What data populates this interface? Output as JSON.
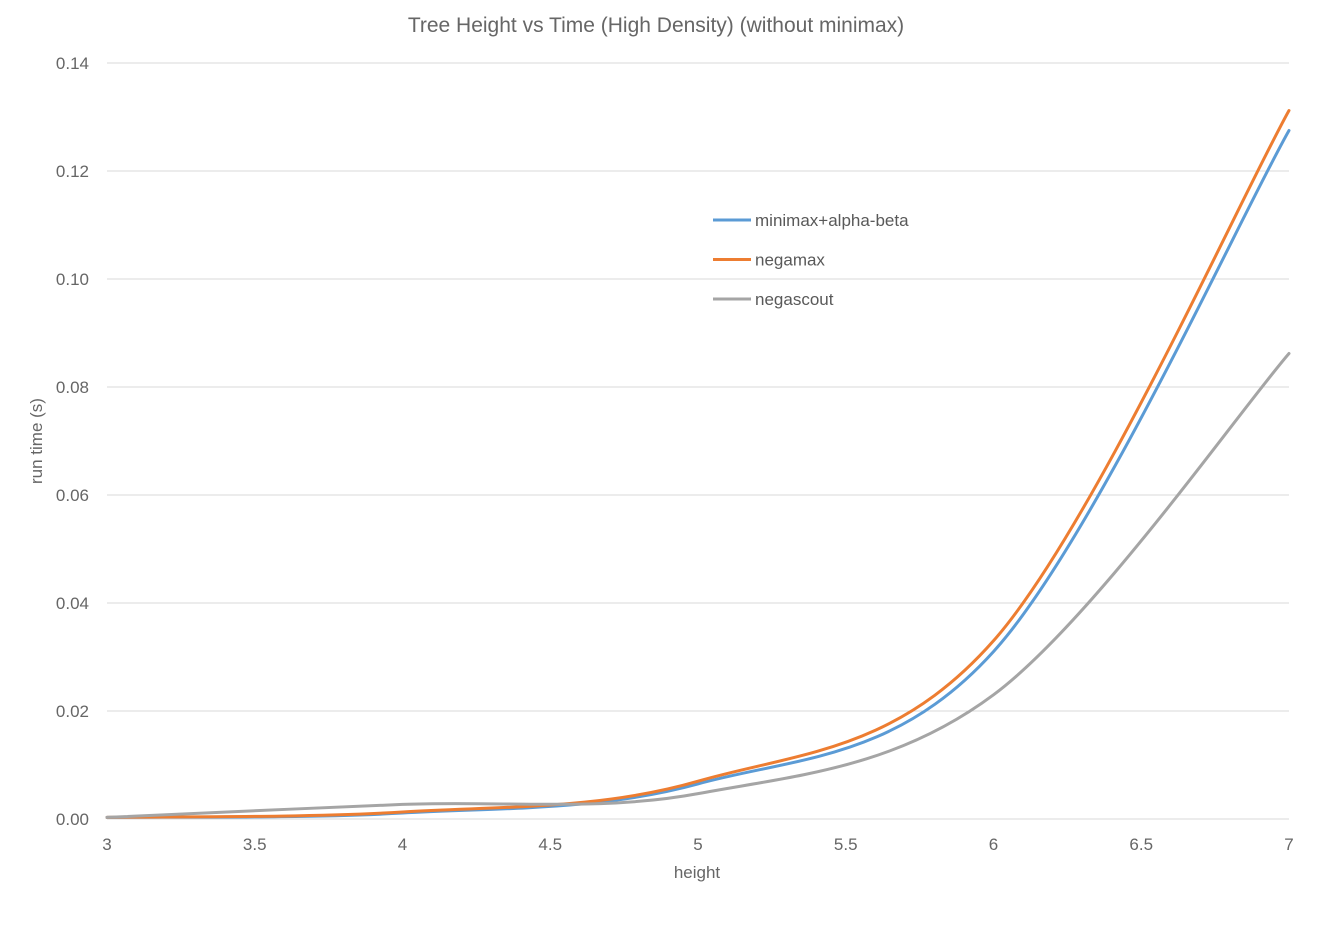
{
  "chart_data": {
    "type": "line",
    "title": "Tree Height vs Time (High Density) (without minimax)",
    "xlabel": "height",
    "ylabel": "run time (s)",
    "xlim": [
      3,
      7
    ],
    "ylim": [
      0,
      0.14
    ],
    "x_ticks": [
      "3",
      "3.5",
      "4",
      "4.5",
      "5",
      "5.5",
      "6",
      "6.5",
      "7"
    ],
    "y_ticks": [
      "0.00",
      "0.02",
      "0.04",
      "0.06",
      "0.08",
      "0.10",
      "0.12",
      "0.14"
    ],
    "grid": true,
    "legend_position": "top-right inside",
    "x": [
      3,
      4,
      5,
      6,
      7
    ],
    "series": [
      {
        "name": "minimax+alpha-beta",
        "color": "#5b9bd5",
        "values": [
          0.0003,
          0.0011,
          0.0065,
          0.031,
          0.1275
        ]
      },
      {
        "name": "negamax",
        "color": "#ed7d31",
        "values": [
          0.0003,
          0.0013,
          0.007,
          0.033,
          0.1312
        ]
      },
      {
        "name": "negascout",
        "color": "#a5a5a5",
        "values": [
          0.0003,
          0.0027,
          0.0047,
          0.023,
          0.0862
        ]
      }
    ]
  }
}
